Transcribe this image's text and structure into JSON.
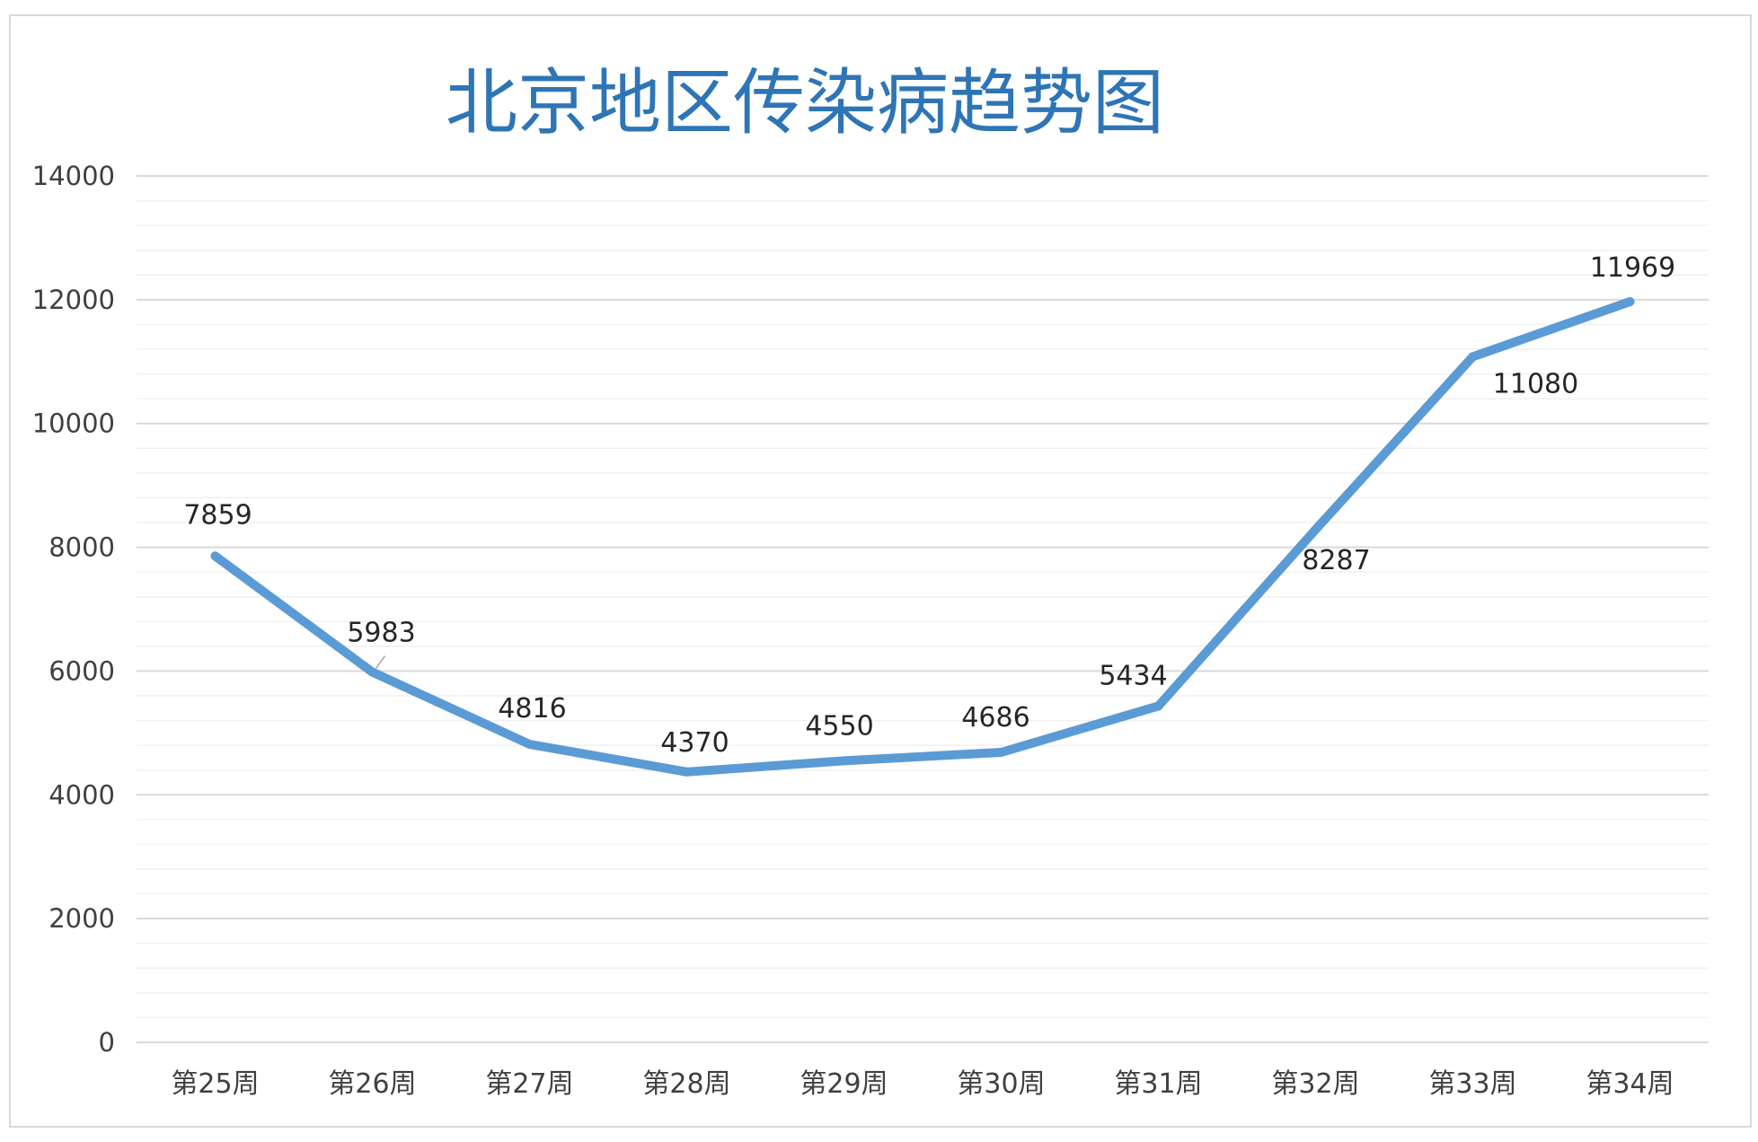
{
  "chart_data": {
    "type": "line",
    "title": "北京地区传染病趋势图",
    "categories": [
      "第25周",
      "第26周",
      "第27周",
      "第28周",
      "第29周",
      "第30周",
      "第31周",
      "第32周",
      "第33周",
      "第34周"
    ],
    "series": [
      {
        "values": [
          7859,
          5983,
          4816,
          4370,
          4550,
          4686,
          5434,
          8287,
          11080,
          11969
        ]
      }
    ],
    "ylim": [
      0,
      14000
    ],
    "yticks": [
      0,
      2000,
      4000,
      6000,
      8000,
      10000,
      12000,
      14000
    ],
    "ytick_labels": [
      "0",
      "2000",
      "4000",
      "6000",
      "8000",
      "10000",
      "12000",
      "14000"
    ],
    "grid": true,
    "minor_grid": true,
    "data_labels": true,
    "legend": "none",
    "colors": {
      "line": "#5b9bd5",
      "title": "#2e75b6",
      "major_grid": "#d9d9d9",
      "minor_grid": "#f0f0f0",
      "text": "#404040"
    }
  }
}
